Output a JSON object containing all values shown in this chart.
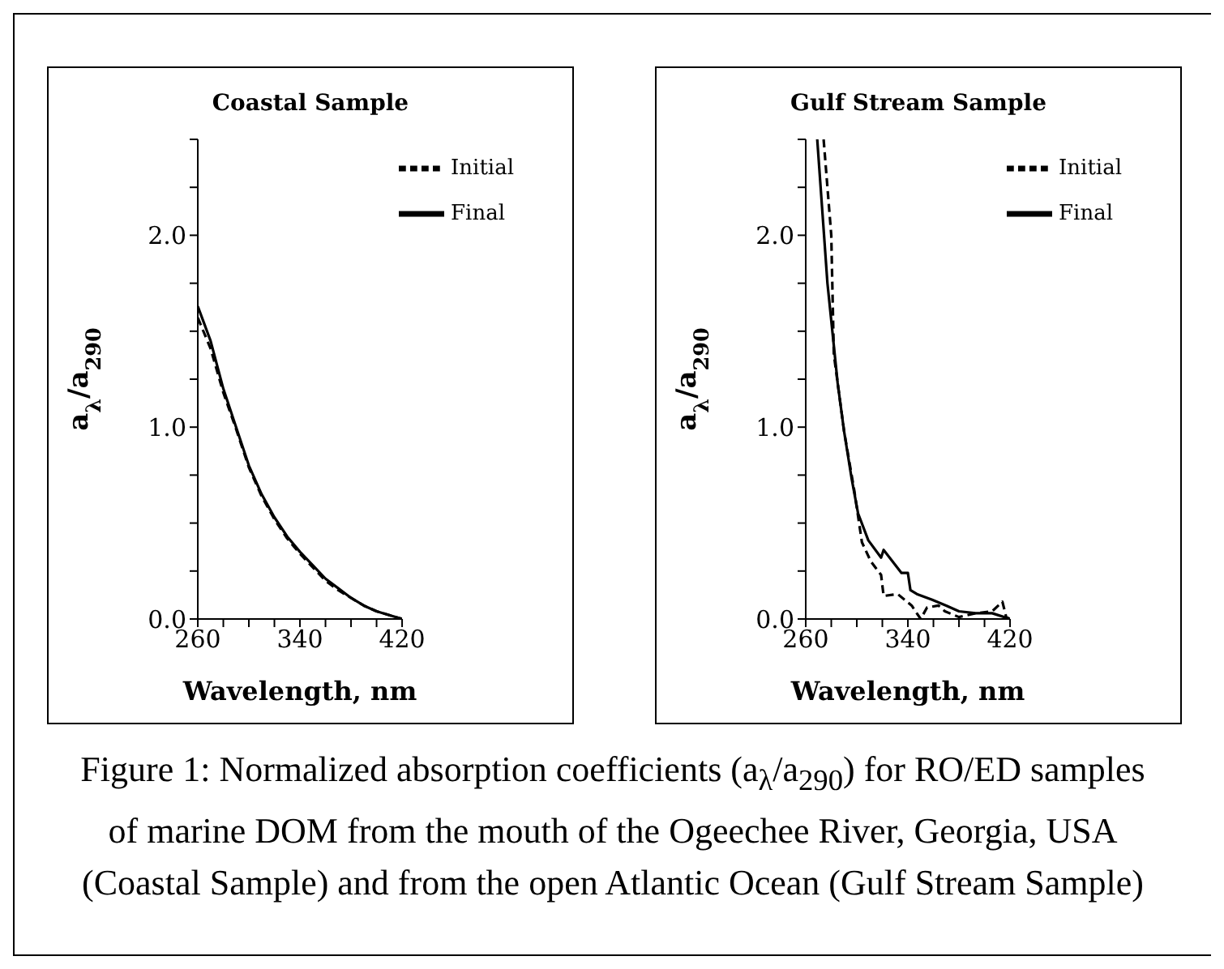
{
  "chart_data": [
    {
      "type": "line",
      "title": "Coastal Sample",
      "xlabel": "Wavelength, nm",
      "ylabel": "a$_{λ}$/a$_{290}$",
      "xlim": [
        260,
        420
      ],
      "ylim": [
        0,
        2.5
      ],
      "xticks": [
        260,
        {
          "value": 280,
          "label": null
        },
        {
          "value": 300,
          "label": null
        },
        {
          "value": 320,
          "label": null
        },
        340,
        {
          "value": 360,
          "label": null
        },
        {
          "value": 380,
          "label": null
        },
        {
          "value": 400,
          "label": null
        },
        420
      ],
      "yticks": [
        {
          "value": 0,
          "label": "0.0"
        },
        {
          "value": 0.25,
          "label": null
        },
        {
          "value": 0.5,
          "label": null
        },
        {
          "value": 0.75,
          "label": null
        },
        {
          "value": 1,
          "label": "1.0"
        },
        {
          "value": 1.25,
          "label": null
        },
        {
          "value": 1.5,
          "label": null
        },
        {
          "value": 1.75,
          "label": null
        },
        {
          "value": 2,
          "label": "2.0"
        },
        {
          "value": 2.25,
          "label": null
        },
        {
          "value": 2.5,
          "label": null
        }
      ],
      "legend": "top right",
      "grid": false,
      "marker": "none",
      "series": [
        {
          "name": "Initial",
          "color": "#000000",
          "line_style": "dashed",
          "x": [
            260,
            270,
            280,
            290,
            300,
            310,
            320,
            330,
            340,
            350,
            360,
            370,
            380,
            390,
            400,
            410,
            420
          ],
          "values": [
            1.57,
            1.41,
            1.18,
            0.99,
            0.79,
            0.64,
            0.52,
            0.42,
            0.34,
            0.27,
            0.2,
            0.15,
            0.11,
            0.07,
            0.04,
            0.02,
            0
          ]
        },
        {
          "name": "Final",
          "color": "#000000",
          "line_style": "solid",
          "x": [
            260,
            270,
            280,
            290,
            300,
            310,
            320,
            330,
            340,
            350,
            360,
            370,
            380,
            390,
            400,
            410,
            420
          ],
          "values": [
            1.63,
            1.45,
            1.2,
            1.0,
            0.8,
            0.65,
            0.53,
            0.43,
            0.35,
            0.28,
            0.21,
            0.16,
            0.11,
            0.07,
            0.04,
            0.02,
            0
          ]
        }
      ],
      "annotations": [
        "Figure 1: Normalized absorption coefficients (a$_{λ}$/a$_{290}$) for RO/ED samples of marine DOM from the mouth of the Ogeechee River, Georgia, USA (Coastal Sample) and from the open Atlantic Ocean (Gulf Stream Sample)"
      ]
    },
    {
      "type": "line",
      "title": "Gulf Stream Sample",
      "xlabel": "Wavelength, nm",
      "ylabel": "a$_{λ}$/a$_{290}$",
      "xlim": [
        260,
        420
      ],
      "ylim": [
        0,
        2.5
      ],
      "xticks": [
        260,
        {
          "value": 280,
          "label": null
        },
        {
          "value": 300,
          "label": null
        },
        {
          "value": 320,
          "label": null
        },
        340,
        {
          "value": 360,
          "label": null
        },
        {
          "value": 380,
          "label": null
        },
        {
          "value": 400,
          "label": null
        },
        420
      ],
      "yticks": [
        {
          "value": 0,
          "label": "0.0"
        },
        {
          "value": 0.25,
          "label": null
        },
        {
          "value": 0.5,
          "label": null
        },
        {
          "value": 0.75,
          "label": null
        },
        {
          "value": 1,
          "label": "1.0"
        },
        {
          "value": 1.25,
          "label": null
        },
        {
          "value": 1.5,
          "label": null
        },
        {
          "value": 1.75,
          "label": null
        },
        {
          "value": 2,
          "label": "2.0"
        },
        {
          "value": 2.25,
          "label": null
        },
        {
          "value": 2.5,
          "label": null
        }
      ],
      "legend": "top right",
      "grid": false,
      "marker": "none",
      "series": [
        {
          "name": "Initial",
          "color": "#000000",
          "line_style": "dashed",
          "x": [
            274,
            280,
            282,
            290,
            298,
            304,
            311,
            319,
            321,
            332,
            343,
            350,
            355,
            364,
            369,
            380,
            393,
            406,
            414,
            417,
            420
          ],
          "values": [
            2.5,
            2.0,
            1.38,
            0.98,
            0.67,
            0.4,
            0.3,
            0.23,
            0.12,
            0.13,
            0.07,
            0,
            0.06,
            0.07,
            0.04,
            0.01,
            0.03,
            0.04,
            0.09,
            0.01,
            0
          ]
        },
        {
          "name": "Final",
          "color": "#000000",
          "line_style": "solid",
          "x": [
            269,
            277,
            285,
            290,
            296,
            301,
            309,
            319,
            321,
            335,
            340,
            342,
            347,
            359,
            370,
            380,
            393,
            406,
            420
          ],
          "values": [
            2.5,
            1.75,
            1.23,
            0.98,
            0.73,
            0.55,
            0.41,
            0.32,
            0.36,
            0.24,
            0.24,
            0.15,
            0.13,
            0.1,
            0.07,
            0.04,
            0.03,
            0.03,
            0
          ]
        }
      ]
    }
  ]
}
